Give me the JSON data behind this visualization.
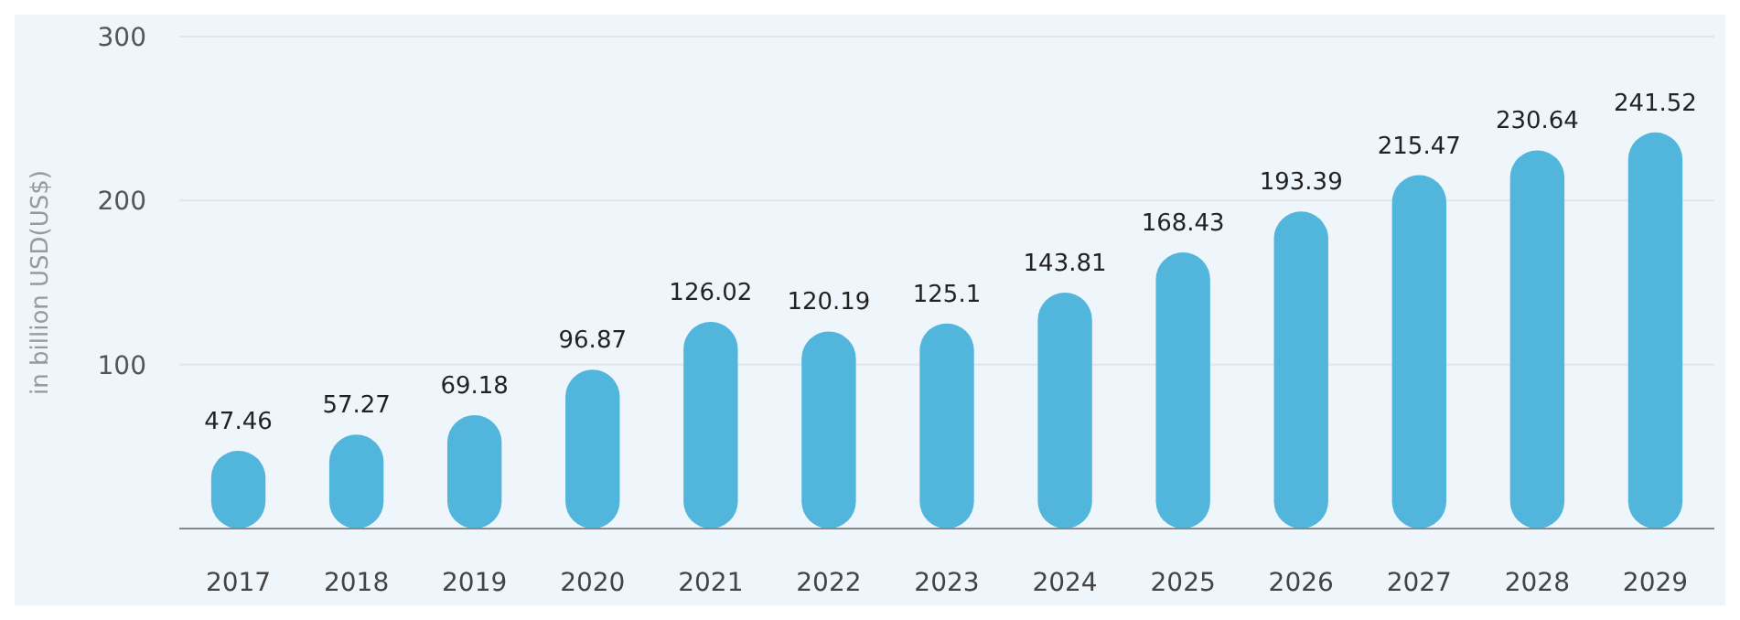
{
  "chart_data": {
    "type": "bar",
    "ylabel": "in billion USD(US$)",
    "categories": [
      "2017",
      "2018",
      "2019",
      "2020",
      "2021",
      "2022",
      "2023",
      "2024",
      "2025",
      "2026",
      "2027",
      "2028",
      "2029"
    ],
    "values": [
      47.46,
      57.27,
      69.18,
      96.87,
      126.02,
      120.19,
      125.1,
      143.81,
      168.43,
      193.39,
      215.47,
      230.64,
      241.52
    ],
    "color": "#52b5dc",
    "ylim": [
      0,
      300
    ],
    "yticks": [
      100,
      200,
      300
    ],
    "grid": "y",
    "data_labels": true
  }
}
